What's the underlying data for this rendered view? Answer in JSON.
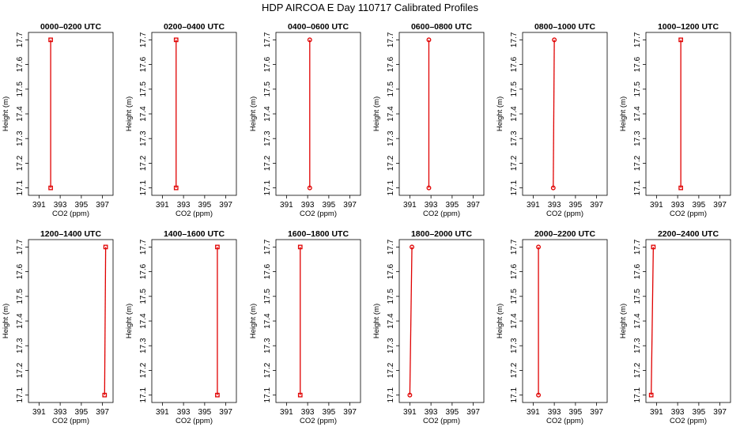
{
  "title": "HDP AIRCOA E  Day 110717  Calibrated Profiles",
  "chart_data": {
    "type": "line",
    "title": "HDP AIRCOA E  Day 110717  Calibrated Profiles",
    "xlabel": "CO2 (ppm)",
    "ylabel": "Height (m)",
    "xlim": [
      390,
      398
    ],
    "ylim": [
      17.07,
      17.73
    ],
    "x_ticks": [
      "391",
      "393",
      "395",
      "397"
    ],
    "y_ticks": [
      "17.1",
      "17.2",
      "17.3",
      "17.4",
      "17.5",
      "17.6",
      "17.7"
    ],
    "grid": false,
    "panels": [
      {
        "title": "0000–0200 UTC",
        "marker": "square",
        "points": [
          {
            "co2": 392.1,
            "height": 17.1
          },
          {
            "co2": 392.1,
            "height": 17.7
          }
        ]
      },
      {
        "title": "0200–0400 UTC",
        "marker": "square",
        "points": [
          {
            "co2": 392.3,
            "height": 17.1
          },
          {
            "co2": 392.3,
            "height": 17.7
          }
        ]
      },
      {
        "title": "0400–0600 UTC",
        "marker": "circle",
        "points": [
          {
            "co2": 393.2,
            "height": 17.1
          },
          {
            "co2": 393.2,
            "height": 17.7
          }
        ]
      },
      {
        "title": "0600–0800 UTC",
        "marker": "circle",
        "points": [
          {
            "co2": 392.8,
            "height": 17.1
          },
          {
            "co2": 392.8,
            "height": 17.7
          }
        ]
      },
      {
        "title": "0800–1000 UTC",
        "marker": "circle",
        "points": [
          {
            "co2": 392.9,
            "height": 17.1
          },
          {
            "co2": 393.0,
            "height": 17.7
          }
        ]
      },
      {
        "title": "1000–1200 UTC",
        "marker": "square",
        "points": [
          {
            "co2": 393.3,
            "height": 17.1
          },
          {
            "co2": 393.3,
            "height": 17.7
          }
        ]
      },
      {
        "title": "1200–1400 UTC",
        "marker": "square",
        "points": [
          {
            "co2": 397.2,
            "height": 17.1
          },
          {
            "co2": 397.3,
            "height": 17.7
          }
        ]
      },
      {
        "title": "1400–1600 UTC",
        "marker": "square",
        "points": [
          {
            "co2": 396.2,
            "height": 17.1
          },
          {
            "co2": 396.2,
            "height": 17.7
          }
        ]
      },
      {
        "title": "1600–1800 UTC",
        "marker": "square",
        "points": [
          {
            "co2": 392.3,
            "height": 17.1
          },
          {
            "co2": 392.3,
            "height": 17.7
          }
        ]
      },
      {
        "title": "1800–2000 UTC",
        "marker": "circle",
        "points": [
          {
            "co2": 391.0,
            "height": 17.1
          },
          {
            "co2": 391.2,
            "height": 17.7
          }
        ]
      },
      {
        "title": "2000–2200 UTC",
        "marker": "circle",
        "points": [
          {
            "co2": 391.5,
            "height": 17.1
          },
          {
            "co2": 391.5,
            "height": 17.7
          }
        ]
      },
      {
        "title": "2200–2400 UTC",
        "marker": "square",
        "points": [
          {
            "co2": 390.5,
            "height": 17.1
          },
          {
            "co2": 390.7,
            "height": 17.7
          }
        ]
      }
    ]
  }
}
